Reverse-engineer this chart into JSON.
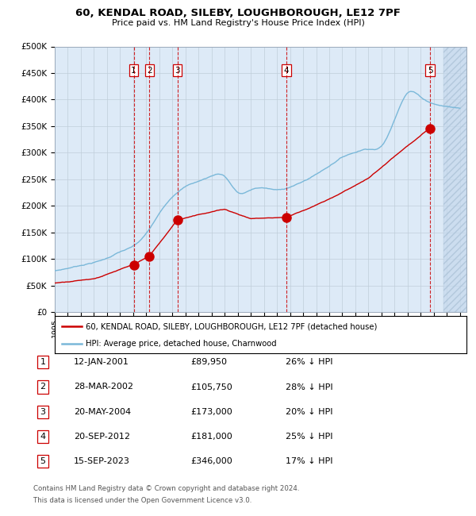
{
  "title": "60, KENDAL ROAD, SILEBY, LOUGHBOROUGH, LE12 7PF",
  "subtitle": "Price paid vs. HM Land Registry's House Price Index (HPI)",
  "legend_line1": "60, KENDAL ROAD, SILEBY, LOUGHBOROUGH, LE12 7PF (detached house)",
  "legend_line2": "HPI: Average price, detached house, Charnwood",
  "footer1": "Contains HM Land Registry data © Crown copyright and database right 2024.",
  "footer2": "This data is licensed under the Open Government Licence v3.0.",
  "transactions": [
    {
      "num": 1,
      "date": "12-JAN-2001",
      "price": 89950,
      "pct": "26% ↓ HPI",
      "year": 2001.04
    },
    {
      "num": 2,
      "date": "28-MAR-2002",
      "price": 105750,
      "pct": "28% ↓ HPI",
      "year": 2002.24
    },
    {
      "num": 3,
      "date": "20-MAY-2004",
      "price": 173000,
      "pct": "20% ↓ HPI",
      "year": 2004.38
    },
    {
      "num": 4,
      "date": "20-SEP-2012",
      "price": 181000,
      "pct": "25% ↓ HPI",
      "year": 2012.72
    },
    {
      "num": 5,
      "date": "15-SEP-2023",
      "price": 346000,
      "pct": "17% ↓ HPI",
      "year": 2023.71
    }
  ],
  "hpi_color": "#7ab8d9",
  "price_color": "#cc0000",
  "marker_color": "#cc0000",
  "dashed_color": "#cc0000",
  "bg_color": "#ddeaf7",
  "grid_color": "#c0ceda",
  "ylim": [
    0,
    500000
  ],
  "xlim_start": 1995.0,
  "xlim_end": 2026.5,
  "future_shade_start": 2024.71,
  "hpi_anchors_x": [
    1995,
    1996,
    1997,
    1998,
    1999,
    2000,
    2001,
    2002,
    2003,
    2004,
    2005,
    2006,
    2007,
    2008,
    2009,
    2010,
    2011,
    2012,
    2013,
    2014,
    2015,
    2016,
    2017,
    2018,
    2019,
    2020,
    2021,
    2022,
    2023,
    2024,
    2025,
    2026
  ],
  "hpi_anchors_y": [
    78000,
    83000,
    89000,
    95000,
    103000,
    115000,
    125000,
    148000,
    185000,
    218000,
    238000,
    248000,
    258000,
    258000,
    228000,
    232000,
    236000,
    232000,
    238000,
    248000,
    262000,
    278000,
    295000,
    305000,
    312000,
    318000,
    368000,
    420000,
    412000,
    400000,
    395000,
    392000
  ],
  "price_anchors_x": [
    1995.0,
    1998.0,
    2001.04,
    2002.24,
    2004.38,
    2006.0,
    2008.0,
    2010.0,
    2012.72,
    2016.0,
    2019.0,
    2021.0,
    2023.71
  ],
  "price_anchors_y": [
    55000,
    65000,
    89950,
    105750,
    173000,
    185000,
    195000,
    178000,
    181000,
    215000,
    255000,
    295000,
    346000
  ]
}
